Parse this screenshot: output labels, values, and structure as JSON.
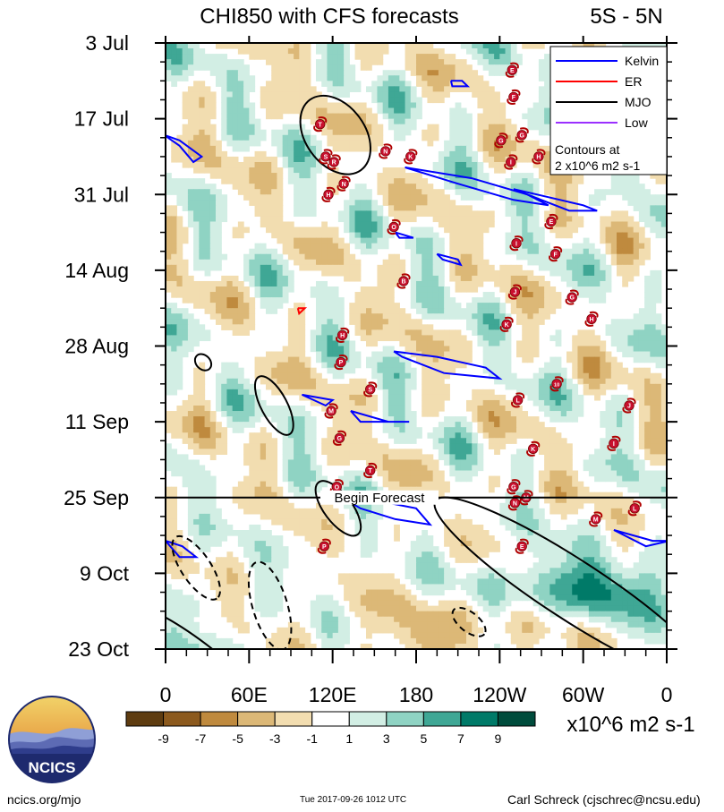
{
  "chart_data": {
    "type": "heatmap",
    "title": "CHI850 with CFS forecasts",
    "region": "5S - 5N",
    "x_ticks": [
      "0",
      "60E",
      "120E",
      "180",
      "120W",
      "60W",
      "0"
    ],
    "x_range_deg_east": [
      0,
      360
    ],
    "y_ticks": [
      "3 Jul",
      "17 Jul",
      "31 Jul",
      "14 Aug",
      "28 Aug",
      "11 Sep",
      "25 Sep",
      "9 Oct",
      "23 Oct"
    ],
    "y_range": [
      "2017-07-03",
      "2017-10-23"
    ],
    "forecast_label": "Begin Forecast",
    "forecast_start": "2017-09-25",
    "legend": {
      "position": "top-right",
      "entries": [
        {
          "name": "Kelvin",
          "color": "#0000ff"
        },
        {
          "name": "ER",
          "color": "#ff0000"
        },
        {
          "name": "MJO",
          "color": "#000000"
        },
        {
          "name": "Low",
          "color": "#9b30ff"
        }
      ],
      "contour_note_1": "Contours at",
      "contour_note_2": "2 x10^6 m2 s-1"
    },
    "colorbar": {
      "labels": [
        "-9",
        "-7",
        "-5",
        "-3",
        "-1",
        "1",
        "3",
        "5",
        "7",
        "9"
      ],
      "colors": [
        "#5e3c10",
        "#8c5a1e",
        "#bf8a3e",
        "#dcb877",
        "#f2ddb0",
        "#ffffff",
        "#d2eee4",
        "#8fd3c3",
        "#3fa795",
        "#007a68",
        "#004c3c"
      ],
      "units": "x10^6 m2 s-1"
    },
    "storms": [
      {
        "letter": "E",
        "lon": 249,
        "day": 5
      },
      {
        "letter": "F",
        "lon": 250,
        "day": 10
      },
      {
        "letter": "G",
        "lon": 256,
        "day": 17
      },
      {
        "letter": "G",
        "lon": 241,
        "day": 18
      },
      {
        "letter": "I",
        "lon": 248,
        "day": 22
      },
      {
        "letter": "H",
        "lon": 268,
        "day": 21
      },
      {
        "letter": "T",
        "lon": 111,
        "day": 15
      },
      {
        "letter": "S",
        "lon": 115,
        "day": 21
      },
      {
        "letter": "R",
        "lon": 121,
        "day": 22
      },
      {
        "letter": "N",
        "lon": 158,
        "day": 20
      },
      {
        "letter": "K",
        "lon": 176,
        "day": 21
      },
      {
        "letter": "N",
        "lon": 128,
        "day": 26
      },
      {
        "letter": "H",
        "lon": 117,
        "day": 28
      },
      {
        "letter": "O",
        "lon": 164,
        "day": 34
      },
      {
        "letter": "E",
        "lon": 277,
        "day": 33
      },
      {
        "letter": "I",
        "lon": 252,
        "day": 37
      },
      {
        "letter": "F",
        "lon": 280,
        "day": 39
      },
      {
        "letter": "B",
        "lon": 171,
        "day": 44
      },
      {
        "letter": "J",
        "lon": 251,
        "day": 46
      },
      {
        "letter": "G",
        "lon": 292,
        "day": 47
      },
      {
        "letter": "K",
        "lon": 245,
        "day": 52
      },
      {
        "letter": "H",
        "lon": 306,
        "day": 51
      },
      {
        "letter": "H",
        "lon": 127,
        "day": 54
      },
      {
        "letter": "P",
        "lon": 126,
        "day": 59
      },
      {
        "letter": "S",
        "lon": 147,
        "day": 64
      },
      {
        "letter": "10",
        "lon": 281,
        "day": 63
      },
      {
        "letter": "L",
        "lon": 253,
        "day": 66
      },
      {
        "letter": "J",
        "lon": 333,
        "day": 67
      },
      {
        "letter": "M",
        "lon": 119,
        "day": 68
      },
      {
        "letter": "G",
        "lon": 125,
        "day": 73
      },
      {
        "letter": "K",
        "lon": 264,
        "day": 75
      },
      {
        "letter": "I",
        "lon": 322,
        "day": 74
      },
      {
        "letter": "T",
        "lon": 147,
        "day": 79
      },
      {
        "letter": "O",
        "lon": 123,
        "day": 82
      },
      {
        "letter": "G",
        "lon": 250,
        "day": 82
      },
      {
        "letter": "N",
        "lon": 251,
        "day": 85
      },
      {
        "letter": "M",
        "lon": 259,
        "day": 84
      },
      {
        "letter": "L",
        "lon": 337,
        "day": 86
      },
      {
        "letter": "M",
        "lon": 309,
        "day": 88
      },
      {
        "letter": "E",
        "lon": 256,
        "day": 93
      },
      {
        "letter": "P",
        "lon": 114,
        "day": 93
      }
    ],
    "kelvin_contours": [
      [
        [
          -1,
          17
        ],
        [
          10,
          19
        ],
        [
          20,
          22
        ],
        [
          26,
          21
        ],
        [
          10,
          18
        ],
        [
          -1,
          17
        ]
      ],
      [
        [
          205,
          7
        ],
        [
          213,
          7
        ],
        [
          217,
          8
        ],
        [
          206,
          8
        ],
        [
          205,
          7
        ]
      ],
      [
        [
          172,
          23
        ],
        [
          220,
          25
        ],
        [
          260,
          28
        ],
        [
          275,
          30
        ],
        [
          250,
          29
        ],
        [
          210,
          26
        ],
        [
          172,
          23
        ]
      ],
      [
        [
          250,
          27
        ],
        [
          300,
          30
        ],
        [
          310,
          31
        ],
        [
          290,
          31
        ],
        [
          260,
          28
        ],
        [
          250,
          27
        ]
      ],
      [
        [
          165,
          35
        ],
        [
          178,
          36
        ],
        [
          168,
          36
        ],
        [
          165,
          35
        ]
      ],
      [
        [
          195,
          39
        ],
        [
          210,
          40
        ],
        [
          212,
          41
        ],
        [
          199,
          40
        ],
        [
          195,
          39
        ]
      ],
      [
        [
          164,
          57
        ],
        [
          195,
          58
        ],
        [
          230,
          60
        ],
        [
          240,
          62
        ],
        [
          200,
          61
        ],
        [
          170,
          58
        ],
        [
          164,
          57
        ]
      ],
      [
        [
          98,
          65
        ],
        [
          120,
          66
        ],
        [
          115,
          67
        ],
        [
          98,
          65
        ]
      ],
      [
        [
          133,
          68
        ],
        [
          160,
          70
        ],
        [
          175,
          70
        ],
        [
          140,
          70
        ],
        [
          133,
          68
        ]
      ],
      [
        [
          127,
          84
        ],
        [
          160,
          85
        ],
        [
          180,
          86
        ],
        [
          190,
          89
        ],
        [
          165,
          88
        ],
        [
          140,
          86
        ],
        [
          127,
          84
        ]
      ],
      [
        [
          322,
          90
        ],
        [
          350,
          92
        ],
        [
          362,
          92
        ],
        [
          345,
          93
        ],
        [
          322,
          90
        ]
      ],
      [
        [
          0,
          92
        ],
        [
          12,
          93
        ],
        [
          22,
          95
        ],
        [
          10,
          95
        ],
        [
          0,
          92
        ]
      ]
    ],
    "er_contours": [
      [
        [
          95,
          49
        ],
        [
          100,
          49
        ],
        [
          96,
          50
        ],
        [
          95,
          49
        ]
      ]
    ],
    "mjo_contours": [
      {
        "lon": 122,
        "day": 17,
        "rx": 20,
        "ry": 5.5,
        "angle": 54,
        "dashed": false
      },
      {
        "lon": 27,
        "day": 59,
        "rx": 4.2,
        "ry": 1.3,
        "angle": 45,
        "dashed": false
      },
      {
        "lon": 78,
        "day": 67,
        "rx": 15,
        "ry": 2.4,
        "angle": 62,
        "dashed": false
      },
      {
        "lon": 124,
        "day": 86,
        "rx": 15,
        "ry": 2.6,
        "angle": 53,
        "dashed": false
      },
      {
        "lon": 22,
        "day": 97,
        "rx": 17,
        "ry": 2.7,
        "angle": 56,
        "dashed": true
      },
      {
        "lon": 75,
        "day": 104,
        "rx": 21,
        "ry": 3.2,
        "angle": 73,
        "dashed": true
      },
      {
        "lon": 218,
        "day": 107,
        "rx": 9,
        "ry": 1.8,
        "angle": 38,
        "dashed": true
      },
      {
        "lon": 292,
        "day": 101,
        "rx": 75,
        "ry": 5.5,
        "angle": 33,
        "dashed": false
      },
      {
        "lon": 22,
        "day": 116,
        "rx": 50,
        "ry": 5.0,
        "angle": 38,
        "dashed": false
      },
      {
        "lon": 78,
        "day": 126,
        "rx": 22,
        "ry": 4.0,
        "angle": 45,
        "dashed": false
      }
    ]
  },
  "footer": {
    "site": "ncics.org/mjo",
    "timestamp": "Tue 2017-09-26 1012 UTC",
    "author": "Carl Schreck (cjschrec@ncsu.edu)"
  },
  "logo": {
    "text": "NCICS",
    "icon": "ncics-globe-icon"
  }
}
